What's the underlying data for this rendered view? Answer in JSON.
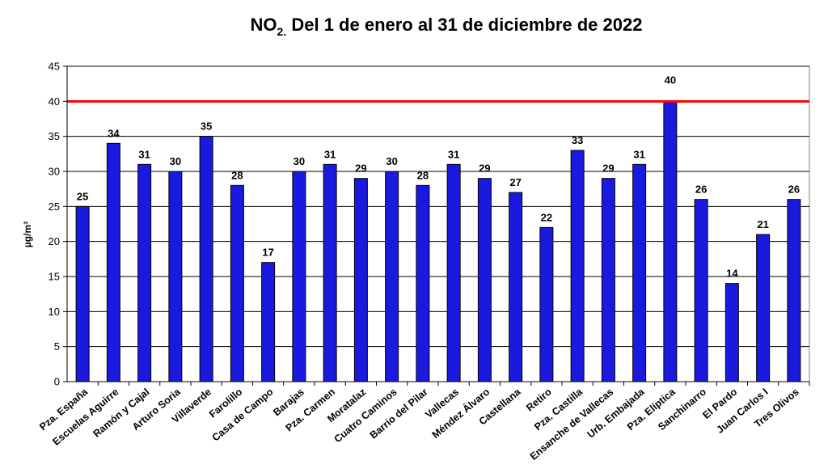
{
  "chart_data": {
    "type": "bar",
    "title_main": "NO",
    "title_subscript": "2.",
    "title_rest": " Del 1 de enero al 31 de diciembre de 2022",
    "ylabel": "µg/m³",
    "xlabel": "",
    "ylim": [
      0,
      45
    ],
    "yticks": [
      0,
      5,
      10,
      15,
      20,
      25,
      30,
      35,
      40,
      45
    ],
    "grid": true,
    "reference_line": {
      "value": 40,
      "color": "#ff0000"
    },
    "categories": [
      "Pza. España",
      "Escuelas Aguirre",
      "Ramón y Cajal",
      "Arturo Soria",
      "Villaverde",
      "Farolillo",
      "Casa de Campo",
      "Barajas",
      "Pza. Carmen",
      "Moratalaz",
      "Cuatro Caminos",
      "Barrio del Pilar",
      "Vallecas",
      "Méndez Álvaro",
      "Castellana",
      "Retiro",
      "Pza. Castilla",
      "Ensanche de Vallecas",
      "Urb. Embajada",
      "Pza. Elíptica",
      "Sanchinarro",
      "El Pardo",
      "Juan Carlos I",
      "Tres Olivos"
    ],
    "values": [
      25,
      34,
      31,
      30,
      35,
      28,
      17,
      30,
      31,
      29,
      30,
      28,
      31,
      29,
      27,
      22,
      33,
      29,
      31,
      40,
      26,
      14,
      21,
      26
    ],
    "bar_color": "#1a1adf"
  }
}
